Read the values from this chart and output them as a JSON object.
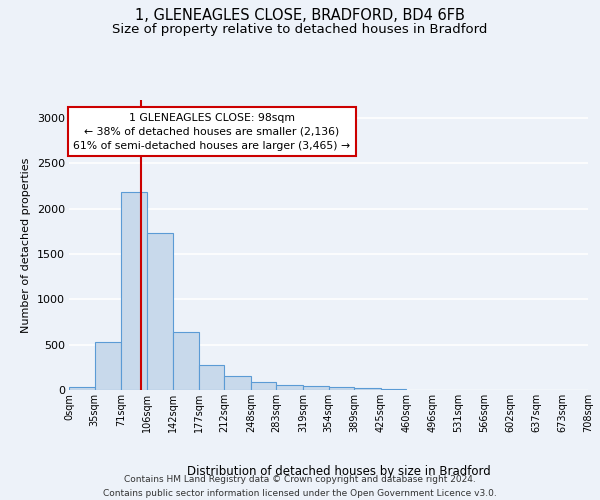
{
  "title1": "1, GLENEAGLES CLOSE, BRADFORD, BD4 6FB",
  "title2": "Size of property relative to detached houses in Bradford",
  "xlabel": "Distribution of detached houses by size in Bradford",
  "ylabel": "Number of detached properties",
  "footer1": "Contains HM Land Registry data © Crown copyright and database right 2024.",
  "footer2": "Contains public sector information licensed under the Open Government Licence v3.0.",
  "bin_edges": [
    0,
    35,
    71,
    106,
    142,
    177,
    212,
    248,
    283,
    319,
    354,
    389,
    425,
    460,
    496,
    531,
    566,
    602,
    637,
    673,
    708
  ],
  "bar_heights": [
    30,
    530,
    2190,
    1730,
    640,
    280,
    150,
    90,
    50,
    40,
    30,
    20,
    10,
    5,
    2,
    1,
    0,
    0,
    0,
    0
  ],
  "bar_color": "#c8d9eb",
  "bar_edge_color": "#5b9bd5",
  "property_size": 98,
  "annotation_line1": "1 GLENEAGLES CLOSE: 98sqm",
  "annotation_line2": "← 38% of detached houses are smaller (2,136)",
  "annotation_line3": "61% of semi-detached houses are larger (3,465) →",
  "vline_color": "#cc0000",
  "annotation_box_edgecolor": "#cc0000",
  "ylim_max": 3200,
  "yticks": [
    0,
    500,
    1000,
    1500,
    2000,
    2500,
    3000
  ],
  "background_color": "#edf2f9",
  "grid_color": "#ffffff",
  "title_fontsize": 10.5,
  "subtitle_fontsize": 9.5,
  "footer_fontsize": 6.5
}
